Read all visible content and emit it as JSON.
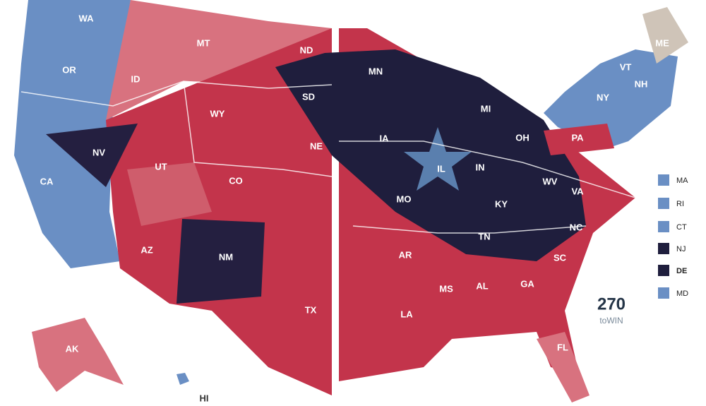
{
  "state_labels": [
    "WA",
    "OR",
    "ID",
    "MT",
    "ND",
    "SD",
    "WY",
    "NE",
    "NV",
    "UT",
    "CO",
    "CA",
    "AZ",
    "NM",
    "TX",
    "MN",
    "IA",
    "IL",
    "IN",
    "OH",
    "MI",
    "MO",
    "WV",
    "VA",
    "KY",
    "TN",
    "NC",
    "SC",
    "AR",
    "MS",
    "AL",
    "GA",
    "LA",
    "FL",
    "AK",
    "HI",
    "PA",
    "NY",
    "VT",
    "NH",
    "ME"
  ],
  "legend": [
    "MA",
    "RI",
    "CT",
    "NJ",
    "DE",
    "MD"
  ],
  "logo": {
    "number": "270",
    "text": "toWIN"
  }
}
